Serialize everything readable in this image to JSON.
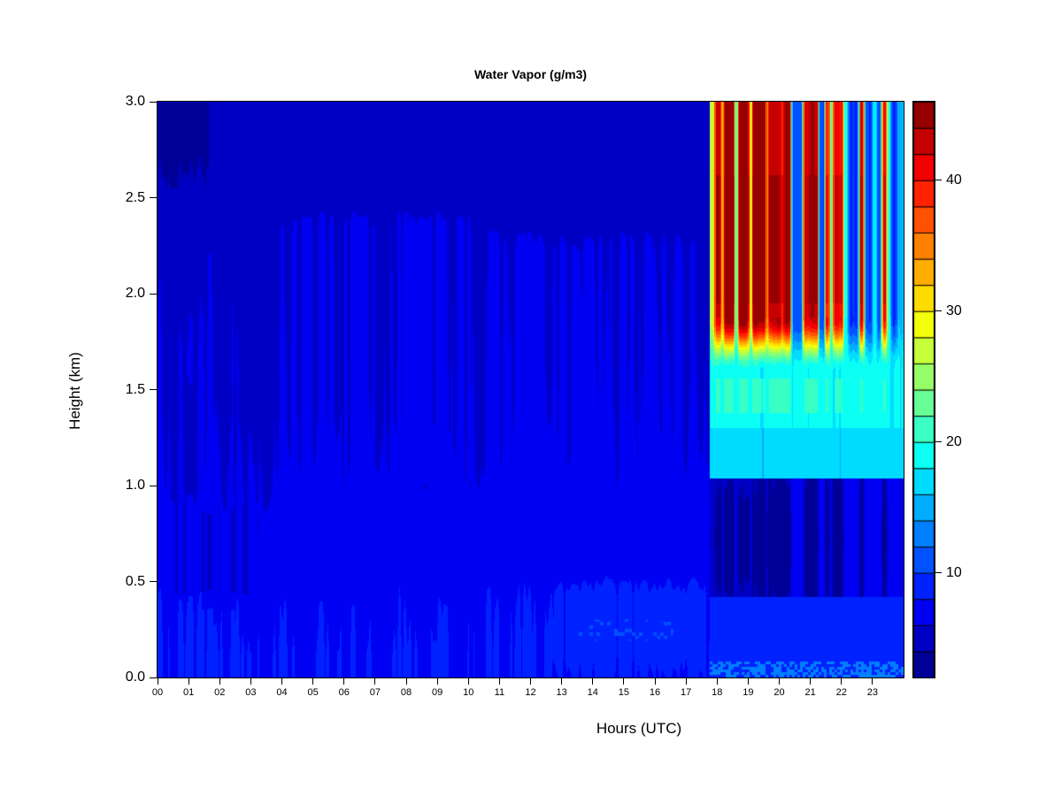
{
  "figure": {
    "title": "Water Vapor (g/m3)",
    "xlabel": "Hours (UTC)",
    "ylabel": "Height (km)"
  },
  "chart_data": {
    "type": "heatmap",
    "title": "Water Vapor (g/m3)",
    "xlabel": "Hours (UTC)",
    "ylabel": "Height (km)",
    "units": "g/m3",
    "x_range_hours": [
      0,
      24
    ],
    "y_range_km": [
      0.0,
      3.0
    ],
    "x_tick_labels": [
      "00",
      "01",
      "02",
      "03",
      "04",
      "05",
      "06",
      "07",
      "08",
      "09",
      "10",
      "11",
      "12",
      "13",
      "14",
      "15",
      "16",
      "17",
      "18",
      "19",
      "20",
      "21",
      "22",
      "23"
    ],
    "y_tick_labels": [
      "0.0",
      "0.5",
      "1.0",
      "1.5",
      "2.0",
      "2.5",
      "3.0"
    ],
    "grid": false,
    "colorbar": {
      "position": "right",
      "palette": "jet-discrete",
      "bands": 22,
      "min": 2,
      "max": 46,
      "band_step": 2,
      "tick_values": [
        10,
        20,
        30,
        40
      ]
    },
    "calm_period": {
      "hours": [
        0,
        17.75
      ],
      "description": "mostly uniform blue (~5-8 g/m3), brighter near surface, darker aloft",
      "base_profile": {
        "heights_km": [
          0.125,
          0.375,
          0.625,
          0.875,
          1.125,
          1.375,
          1.625,
          1.875,
          2.125,
          2.375,
          2.625,
          2.875
        ],
        "values": [
          8.0,
          7.8,
          7.3,
          6.6,
          6.1,
          5.9,
          5.8,
          5.7,
          5.6,
          5.5,
          5.45,
          5.4
        ]
      },
      "features": [
        {
          "name": "dark-patch-top-left",
          "hours": [
            0,
            1.75
          ],
          "heights": [
            2.55,
            3.0
          ],
          "value": 3.4,
          "texture": "ragged"
        },
        {
          "name": "dim-top-left",
          "hours": [
            0,
            3.2
          ],
          "heights": [
            2.25,
            2.62
          ],
          "value": 4.8,
          "texture": "streaky"
        },
        {
          "name": "left-mid-dim",
          "hours": [
            0,
            3.8
          ],
          "heights": [
            0.85,
            1.6
          ],
          "value": 5.6,
          "texture": "streaky"
        },
        {
          "name": "left-low-dark-streaks",
          "hours": [
            0.2,
            3.4
          ],
          "heights": [
            0.35,
            0.95
          ],
          "value": 5.3,
          "texture": "speckle-col"
        },
        {
          "name": "mid-bright-streaks",
          "hours": [
            3.8,
            10.2
          ],
          "heights": [
            1.0,
            2.45
          ],
          "value": 7.2,
          "texture": "streaky"
        },
        {
          "name": "upper-dim-late",
          "hours": [
            10.2,
            17.6
          ],
          "heights": [
            2.15,
            3.0
          ],
          "value": 5.1,
          "texture": "streaky"
        },
        {
          "name": "mid-bright-late",
          "hours": [
            10.4,
            17.4
          ],
          "heights": [
            0.9,
            2.35
          ],
          "value": 7.2,
          "texture": "streaky"
        },
        {
          "name": "low-bright-late",
          "hours": [
            12.5,
            17.75
          ],
          "heights": [
            0.0,
            0.55
          ],
          "value": 8.3
        },
        {
          "name": "surface-speckles",
          "hours": [
            13.2,
            16.8
          ],
          "heights": [
            0.12,
            0.38
          ],
          "value": 10.8,
          "texture": "speckle"
        }
      ]
    },
    "storm_period": {
      "hours": [
        17.75,
        24
      ],
      "description": "alternating moist columns aloft (red, 40-46) and dry gaps (blue, 8-10); continuous cyan layer 1.0-1.6 km; dark-blue dry blobs 0.45-1.0 km; blue near surface with cyan speckles at ground",
      "vertical_structure": {
        "surface_speckle_km": [
          0.0,
          0.085
        ],
        "surface_speckle_value": 13.5,
        "surface_background_value": 9.5,
        "low_blue_km": [
          0.085,
          0.42
        ],
        "low_blue_value": 8.6,
        "dark_blob_km": [
          0.42,
          1.04
        ],
        "dark_blob_value_under_red": 4.0,
        "dark_blob_value_under_gap": 6.4,
        "cyan_band_km": [
          1.04,
          1.6
        ],
        "cyan_band_lower_value": 16.8,
        "cyan_band_upper_value": 18.6,
        "transition_km": [
          1.6,
          1.88
        ],
        "upper_column_km": [
          1.88,
          3.0
        ]
      },
      "stripes_top_value": [
        [
          17.75,
          17.9,
          26
        ],
        [
          17.9,
          18.12,
          42
        ],
        [
          18.12,
          18.2,
          30
        ],
        [
          18.2,
          18.55,
          44
        ],
        [
          18.55,
          18.65,
          20
        ],
        [
          18.65,
          19.02,
          44
        ],
        [
          19.02,
          19.12,
          26
        ],
        [
          19.12,
          19.55,
          45
        ],
        [
          19.55,
          19.62,
          32
        ],
        [
          19.62,
          20.05,
          44
        ],
        [
          20.05,
          20.12,
          36
        ],
        [
          20.12,
          20.38,
          43
        ],
        [
          20.38,
          20.75,
          10
        ],
        [
          20.75,
          21.25,
          43
        ],
        [
          21.25,
          21.45,
          10
        ],
        [
          21.45,
          21.62,
          40
        ],
        [
          21.62,
          21.72,
          20
        ],
        [
          21.72,
          22.05,
          43
        ],
        [
          22.05,
          22.2,
          19
        ],
        [
          22.2,
          22.55,
          9
        ],
        [
          22.55,
          22.72,
          42
        ],
        [
          22.72,
          23.0,
          10
        ],
        [
          23.0,
          23.12,
          18
        ],
        [
          23.12,
          23.28,
          10
        ],
        [
          23.28,
          23.45,
          40
        ],
        [
          23.45,
          23.6,
          19
        ],
        [
          23.6,
          23.78,
          10
        ],
        [
          23.78,
          24.0,
          16
        ]
      ]
    }
  }
}
